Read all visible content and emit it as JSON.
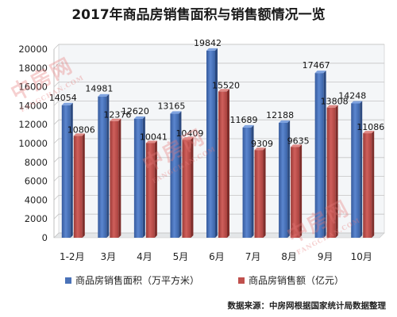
{
  "chart_data": {
    "type": "bar",
    "title": "2017年商品房销售面积与销售额情况一览",
    "categories": [
      "1-2月",
      "3月",
      "4月",
      "5月",
      "6月",
      "7月",
      "8月",
      "9月",
      "10月"
    ],
    "series": [
      {
        "name": "商品房销售面积（万平方米）",
        "values": [
          14054,
          14981,
          12620,
          13165,
          19842,
          11689,
          12188,
          17467,
          14248
        ],
        "color": "#4a72b8"
      },
      {
        "name": "商品房销售额（亿元）",
        "values": [
          10806,
          12376,
          10041,
          10409,
          15520,
          9309,
          9635,
          13808,
          11086
        ],
        "color": "#c0504d"
      }
    ],
    "yticks": [
      0,
      2000,
      4000,
      6000,
      8000,
      10000,
      12000,
      14000,
      16000,
      18000,
      20000
    ],
    "ylim": [
      0,
      20000
    ],
    "grid": true,
    "legend": "bottom"
  },
  "source_note": "数据来源：中房网根据国家统计局数据整理",
  "watermark": {
    "cn": "中房网",
    "en": "FANGCHAN.COM"
  }
}
